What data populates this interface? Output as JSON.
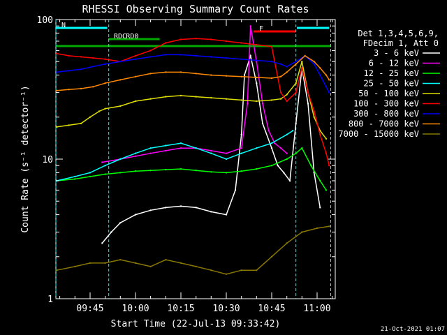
{
  "chart_data": {
    "type": "line",
    "title": "RHESSI Observing Summary Count Rates",
    "xlabel": "Start Time (22-Jul-13 09:33:42)",
    "ylabel": "Count Rate (s⁻¹ detector⁻¹)",
    "x_ticks": [
      "09:45",
      "10:00",
      "10:15",
      "10:30",
      "10:45",
      "11:00"
    ],
    "y_ticks": [
      "1",
      "10",
      "100"
    ],
    "xlim": [
      "09:33:42",
      "11:06:00"
    ],
    "ylim": [
      1,
      100
    ],
    "yscale": "log",
    "grid": false,
    "legend_header": [
      "Det 1,3,4,5,6,9,",
      "FDecim 1, Att 0"
    ],
    "legend_placement": "right",
    "footer": "21-Oct-2021 01:07",
    "flags": [
      {
        "label": "N",
        "color": "#00ffff",
        "segments": [
          [
            "09:33:42",
            "09:50:40"
          ],
          [
            "10:53:20",
            "11:04:00"
          ]
        ]
      },
      {
        "label": "F",
        "color": "#ff0000",
        "segments": [
          [
            "10:39:00",
            "10:53:00"
          ]
        ]
      },
      {
        "label": "RD0",
        "color": "#00aa00",
        "segments": [
          [
            "09:55:00",
            "10:08:00"
          ]
        ]
      },
      {
        "label": "RDC",
        "color": "#00aa00",
        "segments": [
          [
            "09:51:00",
            "09:55:00"
          ]
        ]
      },
      {
        "label": "",
        "color": "#00aa00",
        "segments": [
          [
            "09:33:42",
            "11:04:30"
          ]
        ]
      }
    ],
    "vlines": {
      "color": "#00ffff",
      "times": [
        "09:33:42",
        "09:51:10",
        "10:53:00",
        "11:04:30"
      ]
    },
    "series": [
      {
        "name": "3 - 6 keV",
        "color": "#ffffff",
        "x": [
          "09:49:00",
          "09:52:00",
          "09:55:00",
          "10:00:00",
          "10:05:00",
          "10:10:00",
          "10:15:00",
          "10:20:00",
          "10:25:00",
          "10:30:00",
          "10:33:00",
          "10:35:00",
          "10:36:00",
          "10:38:00",
          "10:40:00",
          "10:42:00",
          "10:45:00",
          "10:47:00",
          "10:49:00",
          "10:51:00",
          "10:53:00",
          "10:55:00",
          "10:57:00",
          "10:59:00",
          "11:01:00"
        ],
        "values": [
          2.5,
          3.0,
          3.5,
          4.0,
          4.3,
          4.5,
          4.6,
          4.5,
          4.2,
          4.0,
          6.0,
          15,
          40,
          55,
          35,
          18,
          12,
          9,
          8,
          7,
          18,
          45,
          25,
          8,
          4.5
        ]
      },
      {
        "name": "6 - 12 keV",
        "color": "#ff00ff",
        "x": [
          "09:49:00",
          "09:55:00",
          "10:00:00",
          "10:05:00",
          "10:10:00",
          "10:15:00",
          "10:20:00",
          "10:25:00",
          "10:30:00",
          "10:35:00",
          "10:37:00",
          "10:38:00",
          "10:40:00",
          "10:42:00",
          "10:44:00",
          "10:46:00",
          "10:48:00",
          "10:50:00"
        ],
        "values": [
          9.5,
          10,
          10.5,
          11,
          11.5,
          12,
          12,
          11.5,
          11,
          12,
          25,
          90,
          50,
          25,
          16,
          13,
          12,
          11
        ]
      },
      {
        "name": "12 - 25 keV",
        "color": "#00ff00",
        "x": [
          "09:34:00",
          "09:40:00",
          "09:45:00",
          "09:50:00",
          "09:55:00",
          "10:00:00",
          "10:05:00",
          "10:10:00",
          "10:15:00",
          "10:20:00",
          "10:25:00",
          "10:30:00",
          "10:35:00",
          "10:40:00",
          "10:45:00",
          "10:50:00",
          "10:53:00",
          "10:55:00",
          "10:58:00",
          "11:01:00",
          "11:03:00"
        ],
        "values": [
          7,
          7.2,
          7.5,
          7.8,
          8,
          8.2,
          8.3,
          8.4,
          8.5,
          8.3,
          8.1,
          8,
          8.2,
          8.5,
          9,
          10,
          11,
          12,
          9,
          7,
          6
        ]
      },
      {
        "name": "25 - 50 keV",
        "color": "#00ffff",
        "x": [
          "09:34:00",
          "09:40:00",
          "09:45:00",
          "09:50:00",
          "09:55:00",
          "10:00:00",
          "10:05:00",
          "10:10:00",
          "10:15:00",
          "10:20:00",
          "10:25:00",
          "10:30:00",
          "10:35:00",
          "10:40:00",
          "10:45:00",
          "10:50:00",
          "10:52:00"
        ],
        "values": [
          7,
          7.5,
          8,
          9,
          10,
          11,
          12,
          12.5,
          13,
          12,
          11,
          10,
          11,
          12,
          13,
          15,
          16
        ]
      },
      {
        "name": "50 - 100 keV",
        "color": "#dddd00",
        "x": [
          "09:34:00",
          "09:38:00",
          "09:42:00",
          "09:45:00",
          "09:48:00",
          "09:50:00",
          "09:55:00",
          "10:00:00",
          "10:05:00",
          "10:10:00",
          "10:15:00",
          "10:20:00",
          "10:25:00",
          "10:30:00",
          "10:35:00",
          "10:40:00",
          "10:45:00",
          "10:48:00",
          "10:50:00",
          "10:53:00",
          "10:55:00",
          "10:57:00",
          "10:59:00",
          "11:01:00",
          "11:03:00"
        ],
        "values": [
          17,
          17.5,
          18,
          20,
          22,
          23,
          24,
          26,
          27,
          28,
          28.5,
          28,
          27.5,
          27,
          26.5,
          26,
          26.5,
          27,
          29,
          35,
          50,
          30,
          20,
          16,
          14
        ]
      },
      {
        "name": "100 - 300 keV",
        "color": "#ff0000",
        "x": [
          "09:34:00",
          "09:38:00",
          "09:42:00",
          "09:46:00",
          "09:50:00",
          "09:55:00",
          "10:00:00",
          "10:05:00",
          "10:10:00",
          "10:15:00",
          "10:20:00",
          "10:25:00",
          "10:30:00",
          "10:35:00",
          "10:40:00",
          "10:45:00",
          "10:48:00",
          "10:50:00",
          "10:53:00",
          "10:55:00",
          "10:57:00",
          "10:59:00",
          "11:01:00",
          "11:03:00",
          "11:04:00"
        ],
        "values": [
          57,
          55,
          54,
          53,
          52,
          50,
          55,
          60,
          68,
          72,
          73,
          72,
          70,
          68,
          66,
          64,
          30,
          26,
          30,
          45,
          30,
          22,
          15,
          11,
          9
        ]
      },
      {
        "name": "300 - 800 keV",
        "color": "#0000ff",
        "x": [
          "09:34:00",
          "09:38:00",
          "09:42:00",
          "09:46:00",
          "09:50:00",
          "09:55:00",
          "10:00:00",
          "10:05:00",
          "10:10:00",
          "10:15:00",
          "10:20:00",
          "10:25:00",
          "10:30:00",
          "10:35:00",
          "10:40:00",
          "10:45:00",
          "10:48:00",
          "10:50:00",
          "10:53:00",
          "10:56:00",
          "10:59:00",
          "11:01:00",
          "11:03:00",
          "11:04:00"
        ],
        "values": [
          42,
          43,
          44,
          46,
          48,
          50,
          52,
          54,
          56,
          56,
          55,
          54,
          53,
          52,
          51,
          50,
          48,
          46,
          50,
          55,
          48,
          40,
          33,
          30
        ]
      },
      {
        "name": "800 - 7000 keV",
        "color": "#ff8800",
        "x": [
          "09:34:00",
          "09:38:00",
          "09:42:00",
          "09:46:00",
          "09:50:00",
          "09:55:00",
          "10:00:00",
          "10:05:00",
          "10:10:00",
          "10:15:00",
          "10:20:00",
          "10:25:00",
          "10:30:00",
          "10:35:00",
          "10:40:00",
          "10:45:00",
          "10:48:00",
          "10:50:00",
          "10:53:00",
          "10:56:00",
          "10:59:00",
          "11:01:00",
          "11:03:00",
          "11:04:00"
        ],
        "values": [
          31,
          31.5,
          32,
          33,
          35,
          37,
          39,
          41,
          42,
          42,
          41,
          40,
          39.5,
          39,
          38.5,
          38,
          39,
          42,
          48,
          55,
          50,
          45,
          40,
          37
        ]
      },
      {
        "name": "7000 - 15000 keV",
        "color": "#887700",
        "x": [
          "09:34:00",
          "09:40:00",
          "09:45:00",
          "09:50:00",
          "09:55:00",
          "10:00:00",
          "10:05:00",
          "10:10:00",
          "10:15:00",
          "10:20:00",
          "10:25:00",
          "10:30:00",
          "10:35:00",
          "10:40:00",
          "10:45:00",
          "10:50:00",
          "10:55:00",
          "11:00:00",
          "11:04:00"
        ],
        "values": [
          1.6,
          1.7,
          1.8,
          1.8,
          1.9,
          1.8,
          1.7,
          1.9,
          1.8,
          1.7,
          1.6,
          1.5,
          1.6,
          1.6,
          2.0,
          2.5,
          3.0,
          3.2,
          3.3
        ]
      }
    ]
  }
}
